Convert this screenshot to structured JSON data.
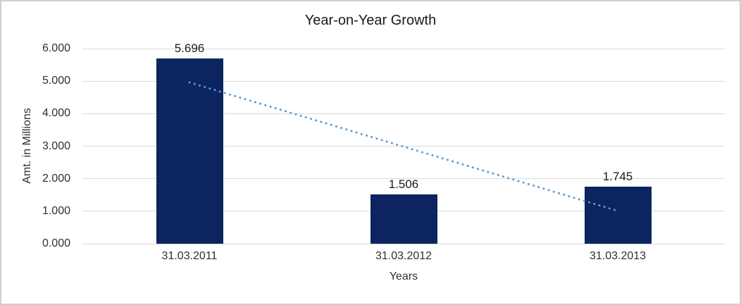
{
  "chart_data": {
    "type": "bar",
    "title": "Year-on-Year Growth",
    "xlabel": "Years",
    "ylabel": "Amt. in Millions",
    "categories": [
      "31.03.2011",
      "31.03.2012",
      "31.03.2013"
    ],
    "values": [
      5.696,
      1.506,
      1.745
    ],
    "data_labels": [
      "5.696",
      "1.506",
      "1.745"
    ],
    "y_ticks": [
      "6.000",
      "5.000",
      "4.000",
      "3.000",
      "2.000",
      "1.000",
      "0.000"
    ],
    "ylim": [
      0,
      6
    ],
    "grid": true,
    "legend": "none",
    "trendline": {
      "type": "linear",
      "style": "dotted",
      "color": "#5b9bd5",
      "start": {
        "x_index": 0,
        "value": 4.96
      },
      "end": {
        "x_index": 2,
        "value": 1.01
      }
    },
    "colors": {
      "bar": "#0c2560",
      "gridline": "#d9d9d9",
      "border": "#cfcfcf",
      "text": "#303030",
      "title_text": "#1a1a1a"
    }
  }
}
